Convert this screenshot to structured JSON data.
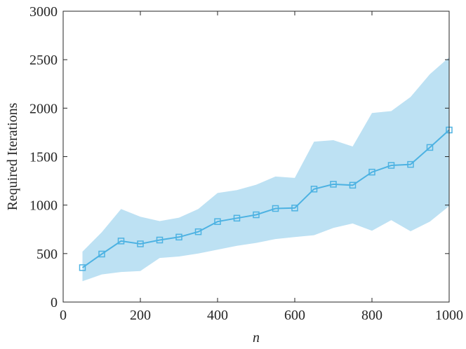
{
  "chart_data": {
    "type": "line",
    "title": "",
    "xlabel": "n",
    "ylabel": "Required Iterations",
    "xlim": [
      0,
      1000
    ],
    "ylim": [
      0,
      3000
    ],
    "xticks": [
      0,
      200,
      400,
      600,
      800,
      1000
    ],
    "yticks": [
      0,
      500,
      1000,
      1500,
      2000,
      2500,
      3000
    ],
    "x_tick_labels": [
      "0",
      "200",
      "400",
      "600",
      "800",
      "1000"
    ],
    "y_tick_labels": [
      "0",
      "500",
      "1000",
      "1500",
      "2000",
      "2500",
      "3000"
    ],
    "grid": false,
    "legend": "none",
    "series": [
      {
        "marker": "square",
        "color": "#4DB2E2",
        "x": [
          50,
          100,
          150,
          200,
          250,
          300,
          350,
          400,
          450,
          500,
          550,
          600,
          650,
          700,
          750,
          800,
          850,
          900,
          950,
          1000
        ],
        "values": [
          355,
          495,
          630,
          600,
          640,
          670,
          725,
          830,
          865,
          900,
          965,
          970,
          1165,
          1215,
          1205,
          1340,
          1410,
          1420,
          1595,
          1775
        ]
      }
    ],
    "band": {
      "color": "#BDE1F3",
      "x": [
        50,
        100,
        150,
        200,
        250,
        300,
        350,
        400,
        450,
        500,
        550,
        600,
        650,
        700,
        750,
        800,
        850,
        900,
        950,
        1000
      ],
      "upper": [
        520,
        720,
        960,
        880,
        835,
        870,
        960,
        1125,
        1155,
        1210,
        1295,
        1280,
        1655,
        1670,
        1605,
        1950,
        1970,
        2115,
        2350,
        2525
      ],
      "lower": [
        215,
        285,
        310,
        320,
        455,
        470,
        500,
        540,
        580,
        610,
        650,
        670,
        690,
        765,
        810,
        735,
        845,
        730,
        830,
        990
      ]
    }
  }
}
